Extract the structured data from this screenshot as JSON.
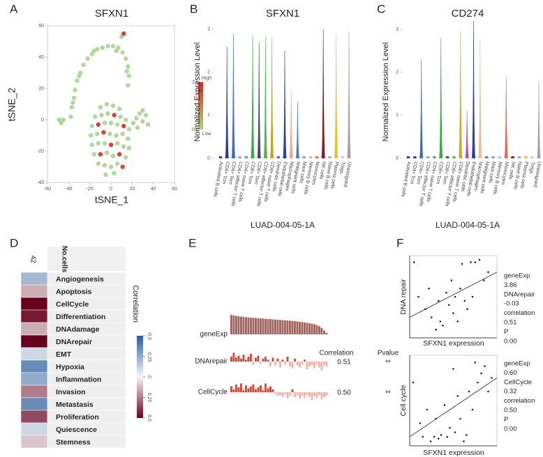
{
  "chart_data": [
    {
      "panel": "A",
      "type": "scatter",
      "title": "SFXN1",
      "xlabel": "tSNE_1",
      "ylabel": "tSNE_2",
      "xlim": [
        -60,
        60
      ],
      "xticks": [
        -60,
        -40,
        -20,
        0,
        20,
        40,
        60
      ],
      "ylim": [
        -40,
        60
      ],
      "yticks": [
        -40,
        -20,
        0,
        20,
        40,
        60
      ],
      "x": [
        -38,
        -37,
        -35,
        -34,
        -32,
        -29,
        -26,
        -22,
        -18,
        -13,
        -8,
        -3,
        2,
        7,
        11,
        14,
        16,
        17,
        16,
        -36,
        -30,
        -16,
        5,
        15,
        12,
        10,
        -49,
        -47,
        -45,
        21,
        24,
        27,
        30,
        33,
        35,
        25,
        30,
        -10,
        -4,
        2,
        8,
        -15,
        -9,
        -3,
        3,
        9,
        14,
        -18,
        -12,
        -6,
        0,
        6,
        12,
        17,
        -19,
        -13,
        -7,
        -1,
        5,
        11,
        16,
        -18,
        -12,
        -6,
        0,
        6,
        12,
        17,
        -16,
        -10,
        -4,
        2,
        8,
        14,
        -12,
        -6,
        0,
        6,
        11,
        -5,
        3
      ],
      "y": [
        2,
        8,
        14,
        19,
        25,
        30,
        35,
        39,
        42,
        45,
        46,
        47,
        47,
        46,
        43,
        39,
        34,
        28,
        22,
        11,
        28,
        44,
        44,
        31,
        55,
        53,
        0,
        -2,
        0,
        -2,
        1,
        4,
        6,
        3,
        -3,
        -5,
        -1,
        8,
        10,
        9,
        7,
        2,
        3,
        4,
        3,
        2,
        0,
        -4,
        -3,
        -2,
        -2,
        -3,
        -4,
        -6,
        -10,
        -9,
        -8,
        -9,
        -10,
        -9,
        -12,
        -16,
        -15,
        -15,
        -16,
        -15,
        -17,
        -18,
        -22,
        -22,
        -21,
        -23,
        -22,
        -24,
        -28,
        -29,
        -30,
        -28,
        -30,
        -35,
        -34
      ],
      "values": [
        0,
        0,
        0,
        0,
        0,
        0,
        0,
        0,
        0,
        0,
        0,
        0,
        0,
        0,
        0,
        0,
        0,
        0,
        0,
        0,
        0,
        0,
        0,
        0,
        3,
        0,
        0,
        0,
        0,
        0,
        0,
        0,
        0,
        0,
        0,
        0,
        0,
        0,
        0,
        0,
        0,
        0,
        0,
        0,
        3,
        0,
        0,
        0,
        3,
        0,
        0,
        0,
        3,
        0,
        0,
        0,
        3,
        0,
        0,
        0,
        0,
        0,
        0,
        0,
        3,
        0,
        0,
        0,
        0,
        3,
        0,
        0,
        3,
        0,
        0,
        0,
        0,
        0,
        3,
        0,
        0
      ],
      "colorbar": {
        "lim": [
          0,
          3
        ],
        "ticks": [
          0,
          3
        ],
        "high": "High",
        "low": "Low",
        "colors": [
          "#a9d38f",
          "#d42b1e"
        ]
      }
    },
    {
      "panel": "B",
      "type": "violin",
      "title": "SFXN1",
      "ylabel": "Normalized Expression Level",
      "xlabel": "LUAD-004-05-1A",
      "ylim": [
        0,
        3.1
      ],
      "yticks": [
        0,
        1,
        2,
        3
      ],
      "categories": [
        "Activated B cells",
        "CD4+ Tcm",
        "CD4+ Tem",
        "CD4+ effector T cells",
        "CD4+ naive T cells",
        "CD8+ Tcm",
        "CD8+ Tem",
        "CD8+ effector T cells",
        "CD8+ naive T cells",
        "Dendritic cells",
        "Endothelial cells",
        "Macrophages",
        "Malignant cells",
        "Mast cells",
        "Memory B cells",
        "Monocytes",
        "NK cells",
        "Naive B cells",
        "Plasma cells",
        "Tregs",
        "Unassigned"
      ],
      "values": [
        0,
        2.6,
        2.9,
        0,
        0,
        2.85,
        2.7,
        2.82,
        2.8,
        0,
        2.5,
        1.6,
        1.3,
        0,
        0,
        0,
        3.0,
        0,
        2.9,
        0,
        2.95
      ],
      "colors": [
        "#2b3f8f",
        "#2b3f8f",
        "#3a6fb5",
        "#9aa2c8",
        "#8a8a8a",
        "#3ca84b",
        "#3b4f5e",
        "#56b04a",
        "#c9a227",
        "#7a5bb0",
        "#2c3f99",
        "#f0a88a",
        "#4a7fb8",
        "#999999",
        "#bbbbbb",
        "#e07050",
        "#7b2020",
        "#aaaaaa",
        "#e6c229",
        "#cccccc",
        "#a0a0a0"
      ]
    },
    {
      "panel": "C",
      "type": "violin",
      "title": "CD274",
      "ylabel": "Normalized Expression Level",
      "xlabel": "LUAD-004-05-1A",
      "ylim": [
        0,
        3.1
      ],
      "yticks": [
        0,
        1,
        2,
        3
      ],
      "categories": [
        "Activated B cells",
        "CD4+ Tcm",
        "CD4+ Tem",
        "CD4+ effector T cells",
        "CD4+ naive T cells",
        "CD8+ Tcm",
        "CD8+ Tem",
        "CD8+ effector T cells",
        "CD8+ naive T cells",
        "Dendritic cells",
        "Endothelial cells",
        "Macrophages",
        "Malignant cells",
        "Mast cells",
        "Memory B cells",
        "Monocytes",
        "NK cells",
        "Naive B cells",
        "Plasma cells",
        "Tregs",
        "Unassigned"
      ],
      "values": [
        0,
        0,
        2.3,
        0,
        0,
        2.8,
        0,
        0,
        2.95,
        1.1,
        3.2,
        2.75,
        0,
        0,
        0,
        1.9,
        0,
        0,
        0,
        0,
        1.8
      ],
      "colors": [
        "#2b3f8f",
        "#2b3f8f",
        "#3a6fb5",
        "#9aa2c8",
        "#8a8a8a",
        "#3ca84b",
        "#3b4f5e",
        "#56b04a",
        "#d4a52a",
        "#c04fb0",
        "#2c3f99",
        "#f3b898",
        "#4a7fb8",
        "#999999",
        "#bbbbbb",
        "#e8674a",
        "#7b2020",
        "#aaaaaa",
        "#e6c229",
        "#cccccc",
        "#a0a0a0"
      ]
    },
    {
      "panel": "D",
      "type": "heatmap",
      "column": "No.cells",
      "column_value": 42,
      "categories": [
        "Angiogenesis",
        "Apoptosis",
        "CellCycle",
        "Differentiation",
        "DNAdamage",
        "DNArepair",
        "EMT",
        "Hypoxia",
        "Inflammation",
        "Invasion",
        "Metastasis",
        "Proliferation",
        "Quiescence",
        "Stemness"
      ],
      "values": [
        -0.2,
        0.15,
        0.5,
        0.45,
        0.15,
        0.51,
        -0.1,
        -0.35,
        -0.25,
        0.25,
        -0.35,
        0.35,
        -0.1,
        0.1
      ],
      "colorbar": {
        "label": "Correlation",
        "lim": [
          -0.5,
          0.5
        ],
        "ticks": [
          -0.5,
          -0.25,
          0,
          0.25,
          0.5
        ],
        "colors": [
          "#2c5d9e",
          "#f7f7f7",
          "#67001f"
        ]
      }
    },
    {
      "panel": "E",
      "type": "bar-strips",
      "correlation_header": "Correlation",
      "pvalue_header": "Pvalue",
      "series": [
        {
          "name": "geneExp",
          "label_color": "#222222",
          "color": "#a0635b",
          "ylim": [
            0,
            1
          ],
          "values": [
            1.0,
            0.97,
            0.95,
            0.93,
            0.92,
            0.9,
            0.88,
            0.87,
            0.86,
            0.85,
            0.84,
            0.83,
            0.82,
            0.81,
            0.8,
            0.79,
            0.78,
            0.77,
            0.76,
            0.75,
            0.74,
            0.73,
            0.72,
            0.71,
            0.7,
            0.69,
            0.68,
            0.67,
            0.65,
            0.63,
            0.61,
            0.59,
            0.57,
            0.55,
            0.52,
            0.48,
            0.42,
            0.33,
            0.2,
            0.08
          ]
        },
        {
          "name": "DNArepair",
          "label_color": "#c0392b",
          "color": "#d04a3c",
          "negative_color": "#f2b3aa",
          "ylim": [
            -1,
            1
          ],
          "correlation": "0.51",
          "pvalue": "**",
          "values": [
            0.5,
            0.9,
            0.4,
            0.6,
            0.3,
            0.7,
            0.2,
            0.5,
            0.8,
            -0.3,
            0.4,
            0.6,
            -0.2,
            0.3,
            0.5,
            0.2,
            -0.5,
            0.4,
            -0.4,
            0.3,
            -0.6,
            0.2,
            -0.3,
            0.5,
            -0.5,
            -0.7,
            0.3,
            -0.4,
            -0.6,
            -0.3,
            0.2,
            -0.8,
            -0.5,
            -0.4,
            -0.7,
            -0.3,
            -0.6,
            -0.9,
            -0.4,
            -0.5
          ]
        },
        {
          "name": "CellCycle",
          "label_color": "#222222",
          "color": "#d04a3c",
          "negative_color": "#f2b3aa",
          "ylim": [
            -1,
            1
          ],
          "correlation": "0.50",
          "pvalue": "**",
          "values": [
            0.6,
            0.3,
            0.8,
            0.5,
            0.9,
            0.2,
            0.7,
            0.4,
            0.6,
            0.8,
            0.3,
            0.5,
            0.7,
            0.2,
            0.9,
            0.4,
            0.6,
            0.3,
            -0.2,
            -0.4,
            -0.3,
            -0.5,
            -0.2,
            -0.6,
            -0.4,
            0.3,
            -0.5,
            -0.3,
            -0.7,
            -0.4,
            -0.6,
            -0.3,
            -0.5,
            -0.8,
            -0.4,
            -0.6,
            -0.3,
            -0.7,
            -0.5,
            -0.4
          ]
        }
      ]
    },
    {
      "panel": "F",
      "type": "scatter-fit",
      "plots": [
        {
          "ylabel": "DNA repair",
          "xlabel": "SFXN1 expression",
          "xlim": [
            0,
            1
          ],
          "ylim": [
            0,
            1
          ],
          "x": [
            0.05,
            0.1,
            0.18,
            0.22,
            0.25,
            0.3,
            0.33,
            0.35,
            0.38,
            0.42,
            0.45,
            0.48,
            0.5,
            0.52,
            0.55,
            0.58,
            0.6,
            0.63,
            0.66,
            0.7,
            0.72,
            0.75,
            0.8,
            0.85,
            0.9
          ],
          "y": [
            0.92,
            0.5,
            0.35,
            0.6,
            0.25,
            0.1,
            0.45,
            0.2,
            0.15,
            0.55,
            0.4,
            0.7,
            0.3,
            0.5,
            0.2,
            0.6,
            0.9,
            0.45,
            0.35,
            0.92,
            0.5,
            0.92,
            0.95,
            0.7,
            0.8
          ],
          "fit": {
            "x": [
              0,
              1
            ],
            "y": [
              0.25,
              0.8
            ]
          },
          "stats": [
            "geneExp",
            "3.86",
            "DNArepair",
            "-0.03",
            "correlation",
            "0.51",
            "P",
            "0.00"
          ]
        },
        {
          "ylabel": "Cell cycle",
          "xlabel": "SFXN1 expression",
          "xlim": [
            0,
            1
          ],
          "ylim": [
            0,
            1
          ],
          "x": [
            0.04,
            0.12,
            0.15,
            0.2,
            0.24,
            0.28,
            0.3,
            0.33,
            0.36,
            0.4,
            0.43,
            0.46,
            0.5,
            0.52,
            0.55,
            0.58,
            0.62,
            0.65,
            0.68,
            0.72,
            0.75,
            0.78,
            0.82,
            0.86,
            0.9,
            0.94
          ],
          "y": [
            0.7,
            0.25,
            0.1,
            0.4,
            0.05,
            0.1,
            0.3,
            0.08,
            0.12,
            0.45,
            0.1,
            0.2,
            0.85,
            0.15,
            0.55,
            0.3,
            0.05,
            0.12,
            0.6,
            0.4,
            0.92,
            0.7,
            0.8,
            0.88,
            0.6,
            0.75
          ],
          "fit": {
            "x": [
              0,
              1
            ],
            "y": [
              0.1,
              0.75
            ]
          },
          "stats": [
            "geneExp",
            "0.60",
            "CellCycle",
            "0.32",
            "correlation",
            "0.50",
            "P",
            "0.00"
          ]
        }
      ]
    }
  ]
}
